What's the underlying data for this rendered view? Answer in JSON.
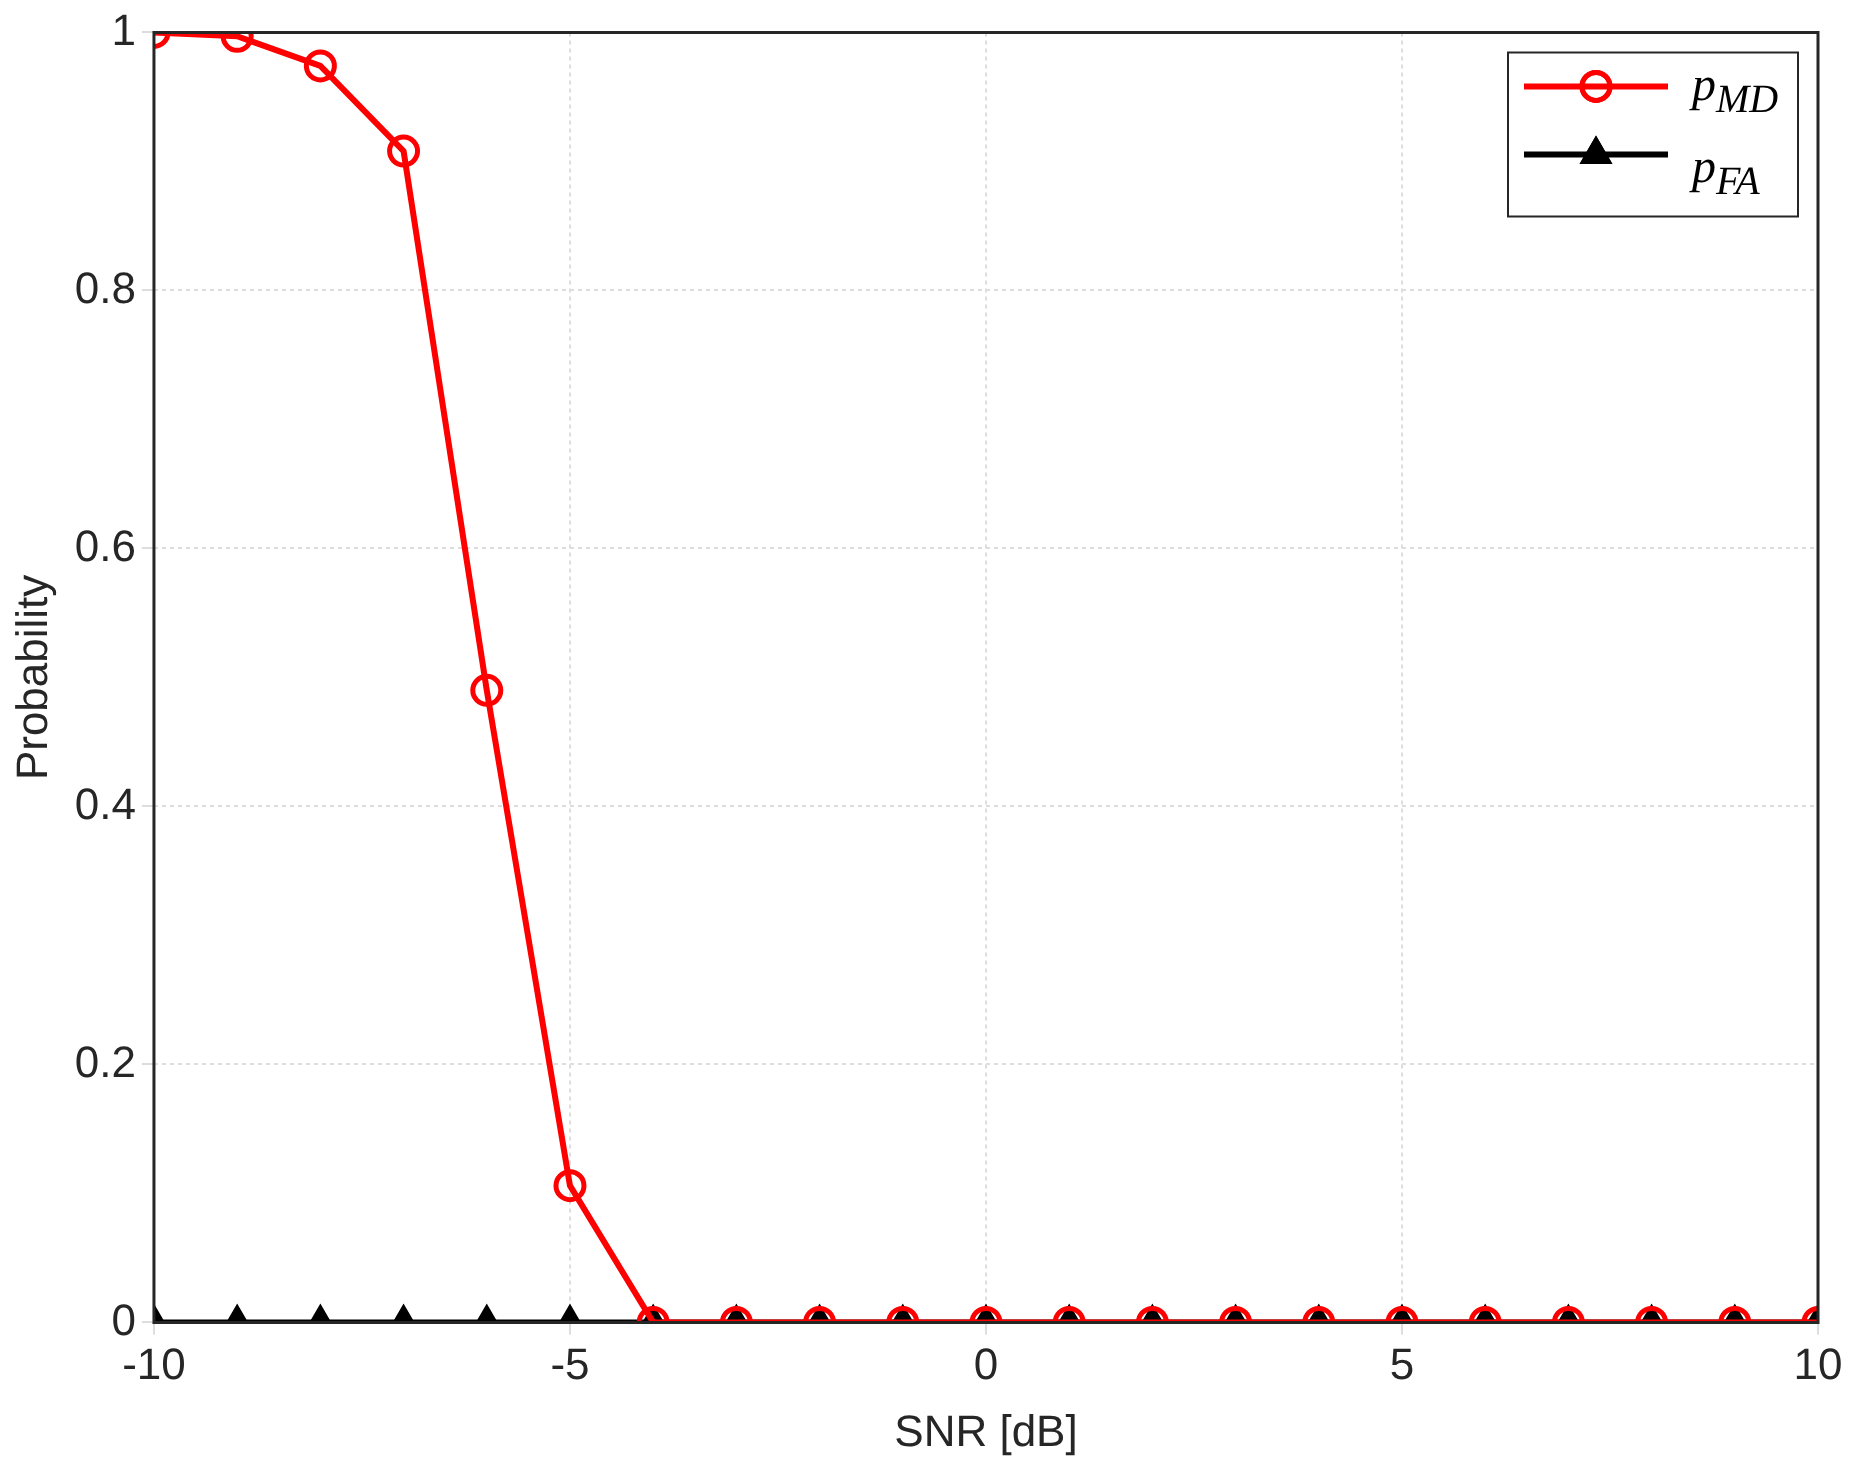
{
  "chart_data": {
    "type": "line",
    "xlabel": "SNR [dB]",
    "ylabel": "Probability",
    "x": [
      -10,
      -9,
      -8,
      -7,
      -6,
      -5,
      -4,
      -3,
      -2,
      -1,
      0,
      1,
      2,
      3,
      4,
      5,
      6,
      7,
      8,
      9,
      10
    ],
    "series": [
      {
        "name": "p$_{MD}$",
        "color": "#ff0000",
        "marker": "circle",
        "values": [
          1.0,
          0.997,
          0.974,
          0.908,
          0.49,
          0.106,
          0,
          0,
          0,
          0,
          0,
          0,
          0,
          0,
          0,
          0,
          0,
          0,
          0,
          0,
          0
        ]
      },
      {
        "name": "p$_{FA}$",
        "color": "#000000",
        "marker": "triangle",
        "values": [
          0,
          0,
          0,
          0,
          0,
          0,
          0,
          0,
          0,
          0,
          0,
          0,
          0,
          0,
          0,
          0,
          0,
          0,
          0,
          0,
          0
        ]
      }
    ],
    "xlim": [
      -10,
      10
    ],
    "xticks": [
      -10,
      -5,
      0,
      5,
      10
    ],
    "ylim": [
      0,
      1
    ],
    "yticks": [
      0,
      0.2,
      0.4,
      0.6,
      0.8,
      1
    ],
    "grid": true,
    "legend": "top right",
    "line_style": "solid"
  }
}
